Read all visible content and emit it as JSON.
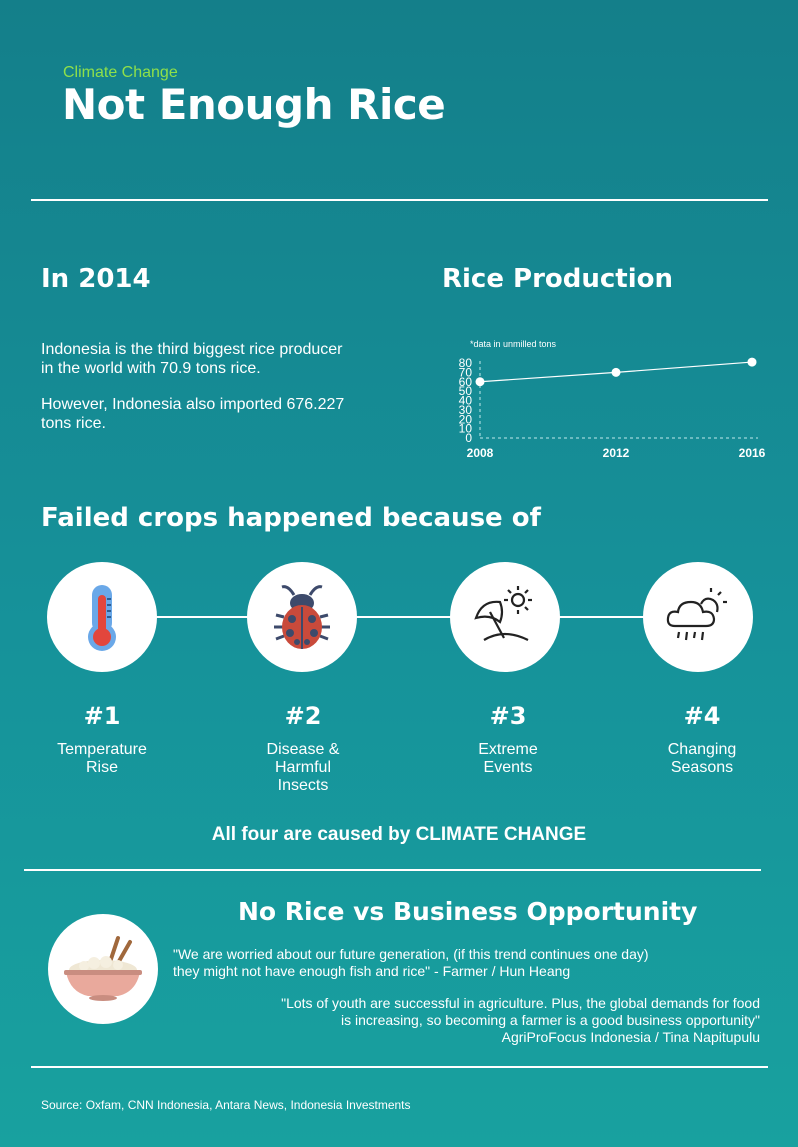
{
  "header": {
    "kicker": "Climate Change",
    "title": "Not Enough Rice"
  },
  "intro": {
    "heading": "In 2014",
    "paragraph1_line1": "Indonesia is the third biggest rice producer",
    "paragraph1_line2": "in the world with 70.9 tons rice.",
    "paragraph2_line1": "However, Indonesia also imported 676.227",
    "paragraph2_line2": "tons rice."
  },
  "production": {
    "heading": "Rice Production"
  },
  "chart_data": {
    "type": "line",
    "title": "Rice Production",
    "note": "*data in unmilled tons",
    "x": [
      "2008",
      "2012",
      "2016"
    ],
    "series": [
      {
        "name": "Rice production",
        "values": [
          60,
          70,
          81
        ]
      }
    ],
    "y_ticks": [
      "80",
      "70",
      "60",
      "50",
      "40",
      "30",
      "20",
      "10",
      "0"
    ],
    "ylim": [
      0,
      80
    ],
    "grid": false,
    "line_color": "#ffffff"
  },
  "causes": {
    "heading": "Failed crops happened because of",
    "items": [
      {
        "number": "#1",
        "label_line1": "Temperature",
        "label_line2": "Rise",
        "label_line3": "",
        "icon": "thermometer-icon"
      },
      {
        "number": "#2",
        "label_line1": "Disease &",
        "label_line2": "Harmful",
        "label_line3": "Insects",
        "icon": "ladybug-icon"
      },
      {
        "number": "#3",
        "label_line1": "Extreme",
        "label_line2": "Events",
        "label_line3": "",
        "icon": "beach-umbrella-sun-icon"
      },
      {
        "number": "#4",
        "label_line1": "Changing",
        "label_line2": "Seasons",
        "label_line3": "",
        "icon": "rain-cloud-sun-icon"
      }
    ],
    "summary": "All four are caused by CLIMATE CHANGE"
  },
  "opportunity": {
    "heading": "No Rice vs Business Opportunity",
    "icon": "rice-bowl-chopsticks-icon",
    "quote1_line1": "\"We are worried about our future generation, (if this trend continues one day)",
    "quote1_line2": "they might not have enough fish and rice\" - Farmer / Hun Heang",
    "quote2_line1": "\"Lots of youth are successful in agriculture. Plus, the global demands for food",
    "quote2_line2": "is increasing, so becoming a farmer is a good business opportunity\"",
    "quote2_line3": "AgriProFocus Indonesia / Tina Napitupulu"
  },
  "footer": {
    "source": "Source: Oxfam, CNN Indonesia, Antara News, Indonesia Investments"
  },
  "colors": {
    "background_top": "#147f8a",
    "background_bottom": "#18a19f",
    "accent_green": "#8fe04a",
    "thermometer_red": "#e2463c",
    "thermometer_blue": "#6aa8e8",
    "ladybug_red": "#c94a3b",
    "ladybug_dark": "#3d4a6b",
    "bowl_pink": "#e9a99c"
  }
}
